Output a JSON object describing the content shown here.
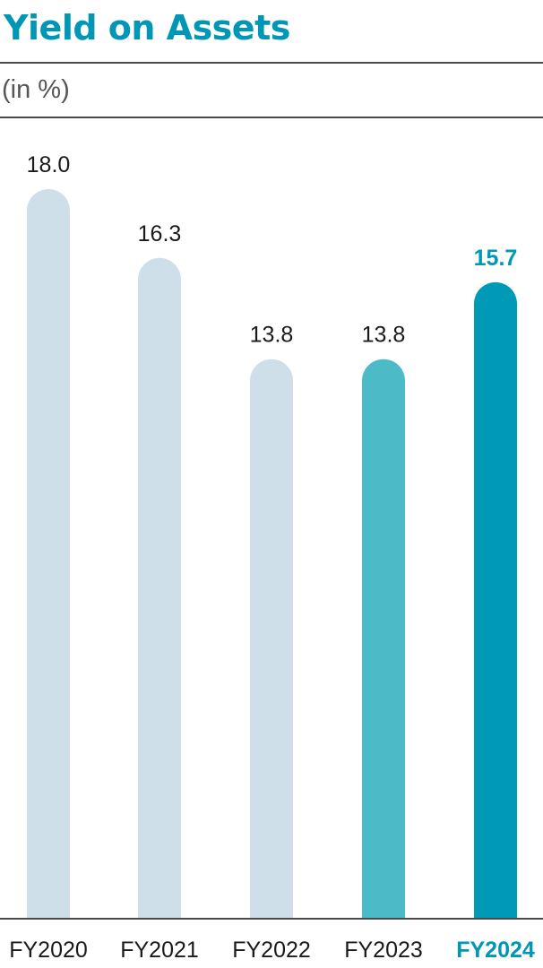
{
  "header": {
    "title": "Yield on Assets",
    "unit_label": "(in %)"
  },
  "colors": {
    "accent": "#0097b6",
    "highlight_bar": "#009ab6",
    "previous_year_bar": "#4dbac8",
    "past_bar": "#cfdfea",
    "text": "#1a1a1a",
    "rule": "#4a4a4a"
  },
  "chart_data": {
    "type": "bar",
    "title": "Yield on Assets",
    "subtitle": "(in %)",
    "categories": [
      "FY2020",
      "FY2021",
      "FY2022",
      "FY2023",
      "FY2024"
    ],
    "values": [
      18.0,
      16.3,
      13.8,
      13.8,
      15.7
    ],
    "value_labels": [
      "18.0",
      "16.3",
      "13.8",
      "13.8",
      "15.7"
    ],
    "highlighted_category": "FY2024",
    "ylim": [
      0,
      18.0
    ],
    "grid": false,
    "legend": "none",
    "xlabel": "",
    "ylabel": ""
  }
}
